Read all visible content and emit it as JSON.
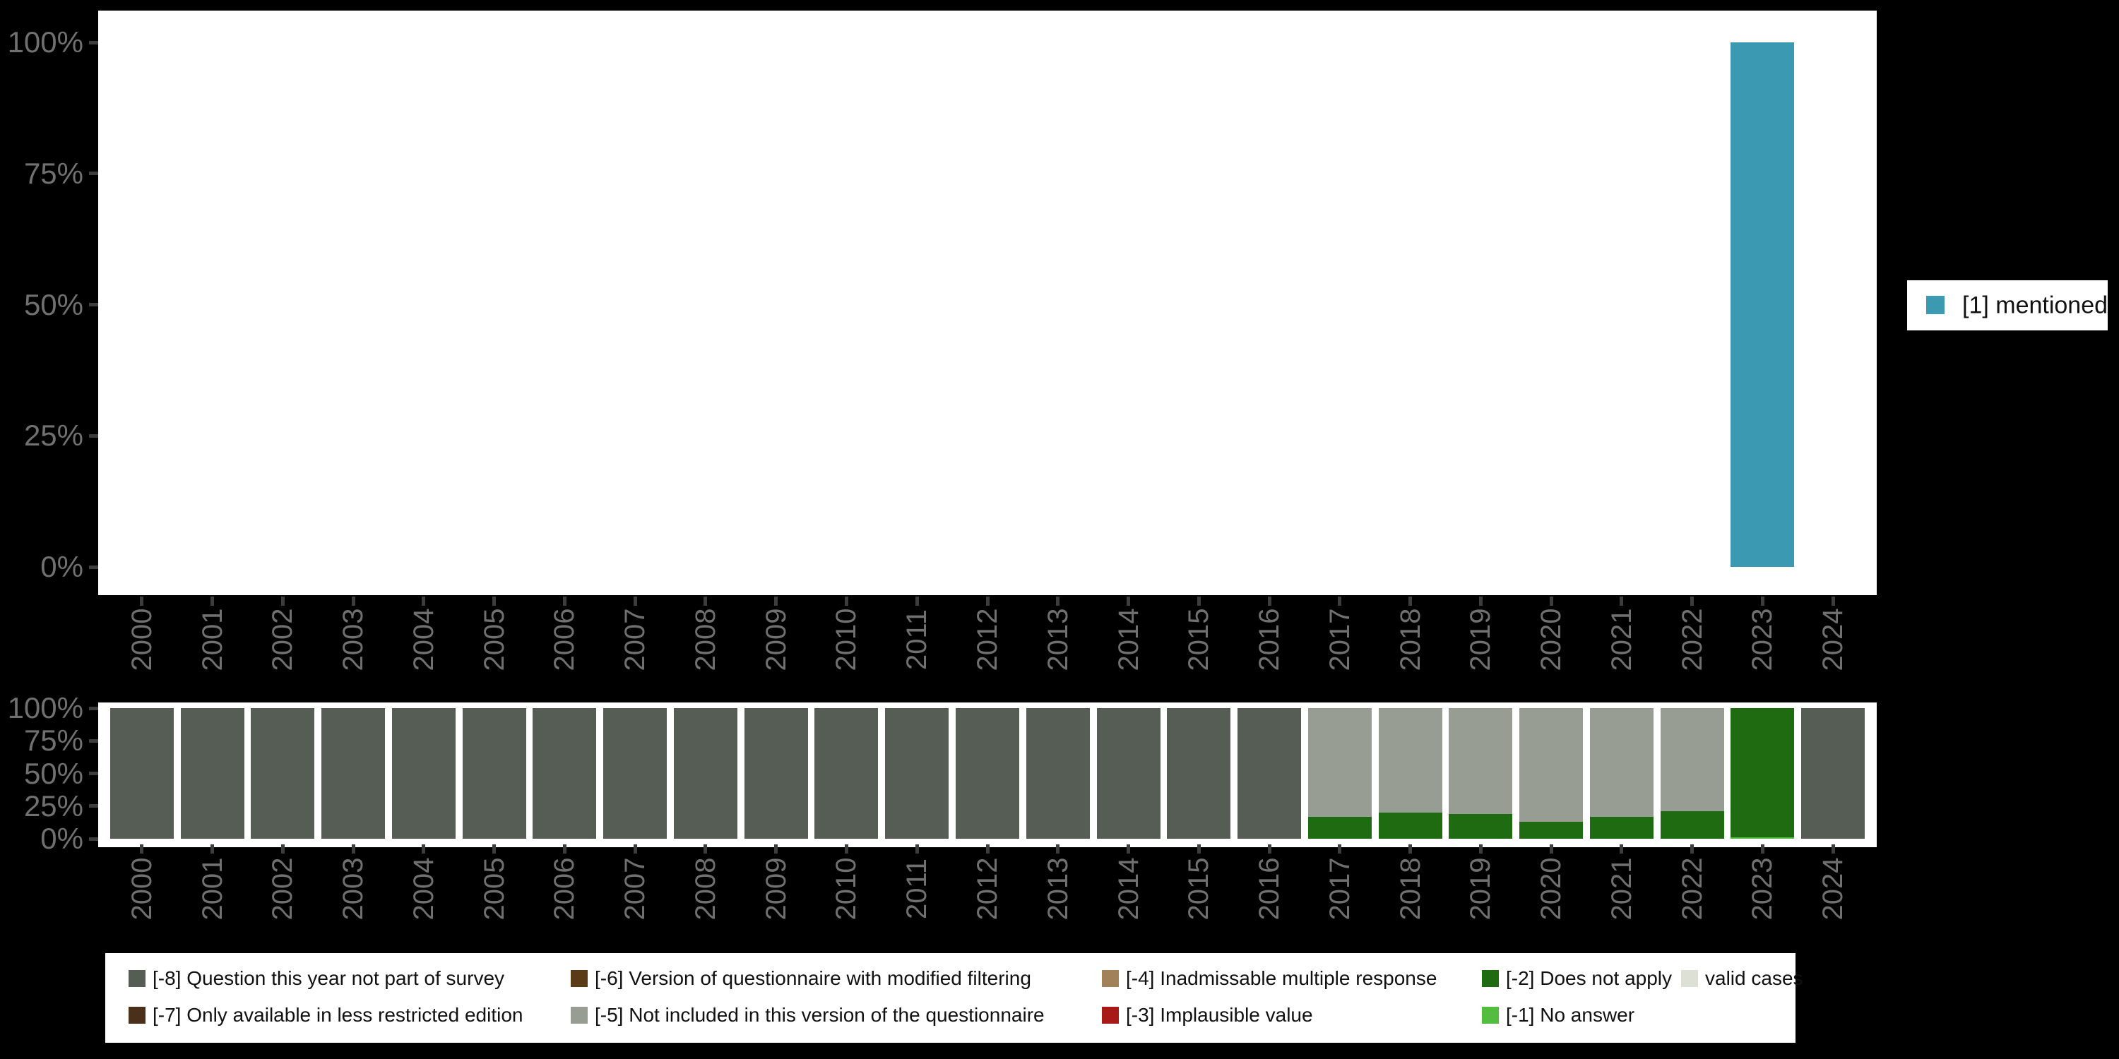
{
  "figure": {
    "background": "#000000",
    "panel_background": "#ffffff"
  },
  "axis": {
    "tick_color": "#3d3d3d",
    "label_color": "#707070",
    "y_tick_labels_top_to_bottom": [
      "100%",
      "75%",
      "50%",
      "25%",
      "0%"
    ]
  },
  "chart_data": [
    {
      "type": "bar",
      "title": "",
      "xlabel": "",
      "ylabel": "",
      "ylim": [
        0,
        100
      ],
      "grid": false,
      "legend_position": "right",
      "categories": [
        "2000",
        "2001",
        "2002",
        "2003",
        "2004",
        "2005",
        "2006",
        "2007",
        "2008",
        "2009",
        "2010",
        "2011",
        "2012",
        "2013",
        "2014",
        "2015",
        "2016",
        "2017",
        "2018",
        "2019",
        "2020",
        "2021",
        "2022",
        "2023",
        "2024"
      ],
      "yticks": [
        "100%",
        "75%",
        "50%",
        "25%",
        "0%"
      ],
      "series": [
        {
          "name": "[1] mentioned",
          "color": "#3b9ab2",
          "values": [
            0,
            0,
            0,
            0,
            0,
            0,
            0,
            0,
            0,
            0,
            0,
            0,
            0,
            0,
            0,
            0,
            0,
            0,
            0,
            0,
            0,
            0,
            0,
            100,
            0
          ]
        }
      ]
    },
    {
      "type": "stacked-bar",
      "title": "",
      "xlabel": "",
      "ylabel": "",
      "ylim": [
        0,
        100
      ],
      "grid": false,
      "legend_position": "bottom",
      "categories": [
        "2000",
        "2001",
        "2002",
        "2003",
        "2004",
        "2005",
        "2006",
        "2007",
        "2008",
        "2009",
        "2010",
        "2011",
        "2012",
        "2013",
        "2014",
        "2015",
        "2016",
        "2017",
        "2018",
        "2019",
        "2020",
        "2021",
        "2022",
        "2023",
        "2024"
      ],
      "yticks": [
        "100%",
        "75%",
        "50%",
        "25%",
        "0%"
      ],
      "stack_order_note": "series listed bottom-up as stacked in bars",
      "series": [
        {
          "name": "[-1] No answer",
          "color": "#52bd3e",
          "values": [
            0,
            0,
            0,
            0,
            0,
            0,
            0,
            0,
            0,
            0,
            0,
            0,
            0,
            0,
            0,
            0,
            0,
            0,
            0,
            0,
            0,
            0,
            0,
            1,
            0
          ]
        },
        {
          "name": "[-2] Does not apply",
          "color": "#1e6b12",
          "values": [
            0,
            0,
            0,
            0,
            0,
            0,
            0,
            0,
            0,
            0,
            0,
            0,
            0,
            0,
            0,
            0,
            0,
            17,
            20,
            19,
            13,
            17,
            21,
            99,
            0
          ]
        },
        {
          "name": "[-5] Not included in this version of the questionnaire",
          "color": "#989d94",
          "values": [
            0,
            0,
            0,
            0,
            0,
            0,
            0,
            0,
            0,
            0,
            0,
            0,
            0,
            0,
            0,
            0,
            0,
            83,
            80,
            81,
            87,
            83,
            79,
            0,
            0
          ]
        },
        {
          "name": "[-8] Question this year not part of survey",
          "color": "#565d54",
          "values": [
            100,
            100,
            100,
            100,
            100,
            100,
            100,
            100,
            100,
            100,
            100,
            100,
            100,
            100,
            100,
            100,
            100,
            0,
            0,
            0,
            0,
            0,
            0,
            0,
            100
          ]
        }
      ]
    }
  ],
  "legend": {
    "top": {
      "items": [
        {
          "label": "[1] mentioned",
          "color": "#3b9ab2"
        }
      ]
    },
    "bottom": {
      "columns": [
        {
          "items": [
            {
              "label": "[-8] Question this year not part of survey",
              "color": "#565d54"
            },
            {
              "label": "[-7] Only available in less restricted edition",
              "color": "#4a3019"
            }
          ]
        },
        {
          "items": [
            {
              "label": "[-6] Version of questionnaire with modified filtering",
              "color": "#5a3a17"
            },
            {
              "label": "[-5] Not included in this version of the questionnaire",
              "color": "#989d94"
            }
          ]
        },
        {
          "items": [
            {
              "label": "[-4] Inadmissable multiple response",
              "color": "#a1805a"
            },
            {
              "label": "[-3] Implausible value",
              "color": "#a81a17"
            }
          ]
        },
        {
          "items": [
            {
              "label": "[-2] Does not apply",
              "color": "#1e6b12"
            },
            {
              "label": "[-1] No answer",
              "color": "#52bd3e"
            }
          ]
        },
        {
          "items": [
            {
              "label": "valid cases",
              "color": "#dce0d5"
            }
          ]
        }
      ]
    }
  }
}
